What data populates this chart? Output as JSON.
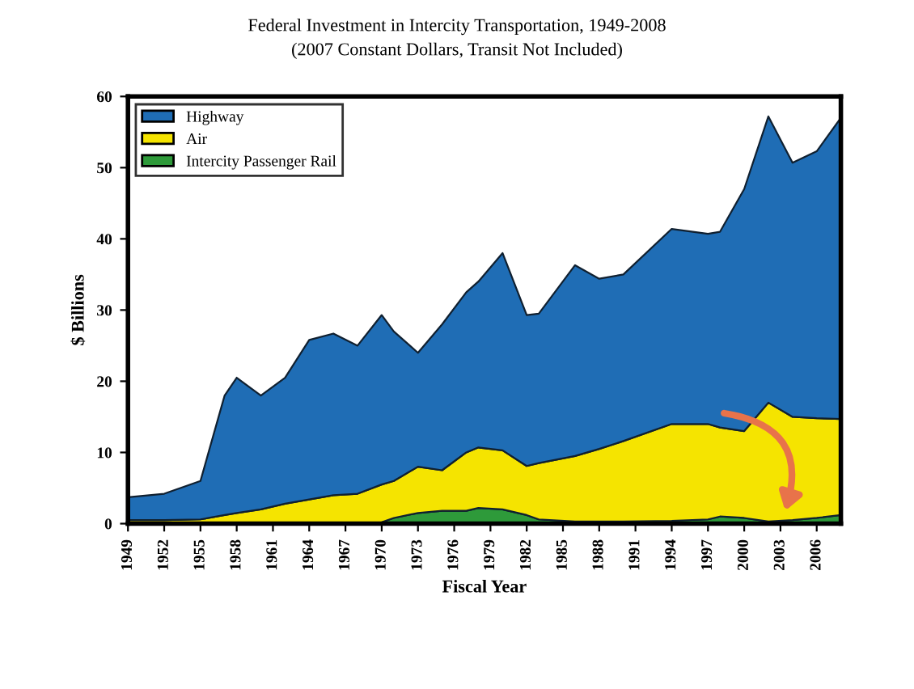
{
  "chart_data": {
    "type": "area",
    "stacked": true,
    "title": "Federal Investment in Intercity Transportation, 1949-2008",
    "subtitle": "(2007 Constant Dollars, Transit Not Included)",
    "xlabel": "Fiscal Year",
    "ylabel": "$ Billions",
    "x": [
      1949,
      1952,
      1955,
      1957,
      1958,
      1960,
      1962,
      1964,
      1966,
      1968,
      1970,
      1971,
      1973,
      1975,
      1977,
      1978,
      1980,
      1982,
      1983,
      1986,
      1988,
      1990,
      1994,
      1997,
      1998,
      2000,
      2002,
      2004,
      2006,
      2008
    ],
    "series": [
      {
        "name": "Intercity Passenger Rail",
        "color": "#2e9a3a",
        "values": [
          0,
          0,
          0,
          0,
          0,
          0,
          0,
          0,
          0,
          0,
          0.2,
          0.8,
          1.5,
          1.8,
          1.8,
          2.2,
          2,
          1.2,
          0.6,
          0.3,
          0.3,
          0.3,
          0.4,
          0.6,
          1,
          0.8,
          0.3,
          0.5,
          0.8,
          1.2
        ]
      },
      {
        "name": "Air",
        "color": "#f5e400",
        "values": [
          0.5,
          0.5,
          0.6,
          1.2,
          1.5,
          2,
          2.8,
          3.4,
          4,
          4.2,
          5.3,
          5.2,
          6.5,
          5.7,
          8.2,
          8.5,
          8.3,
          6.9,
          7.9,
          9.2,
          10.2,
          11.3,
          13.6,
          13.4,
          12.5,
          12.2,
          16.7,
          14.5,
          14,
          13.5
        ]
      },
      {
        "name": "Highway",
        "color": "#1f6db5",
        "values": [
          3.2,
          3.7,
          5.4,
          16.8,
          19,
          16,
          17.7,
          22.4,
          22.7,
          20.8,
          23.8,
          21,
          16,
          20.5,
          22.5,
          23.3,
          27.7,
          21.2,
          21,
          26.8,
          23.9,
          23.4,
          27.4,
          26.7,
          27.5,
          34,
          40.2,
          35.7,
          37.5,
          42.3
        ]
      }
    ],
    "xlim": [
      1949,
      2008
    ],
    "ylim": [
      0,
      60
    ],
    "xticks": [
      1949,
      1952,
      1955,
      1958,
      1961,
      1964,
      1967,
      1970,
      1973,
      1976,
      1979,
      1982,
      1985,
      1988,
      1991,
      1994,
      1997,
      2000,
      2003,
      2006
    ],
    "yticks": [
      0,
      10,
      20,
      30,
      40,
      50,
      60
    ],
    "grid": false,
    "legend": "top left"
  }
}
